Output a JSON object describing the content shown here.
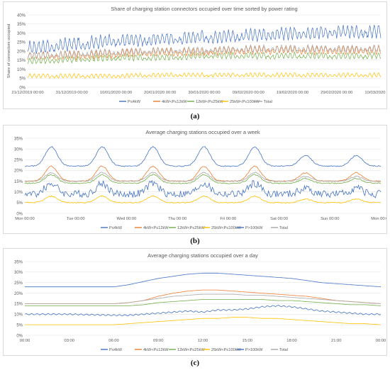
{
  "colors": {
    "P<=4kW": "#4472c4",
    "4kW<P<=12kW": "#ed7d31",
    "12kW<P<=25kW": "#70ad47",
    "25kW<P<=100kW": "#ffc000",
    "P>100kW": "#4472c4",
    "Total": "#a5a5a5"
  },
  "chart_data": [
    {
      "type": "line",
      "caption": "(a)",
      "title": "Share of charging station connectors occupied over time sorted by power rating",
      "ylabel": "Share of connectors occupied",
      "xlabel": "",
      "ylim": [
        0,
        40
      ],
      "yticks": [
        "0%",
        "5%",
        "10%",
        "15%",
        "20%",
        "25%",
        "30%",
        "35%",
        "40%"
      ],
      "xticks": [
        "21/12/2019 00:00",
        "31/12/2019 00:00",
        "10/01/2020 00:00",
        "20/01/2020 00:00",
        "30/01/2020 00:00",
        "09/02/2020 00:00",
        "19/02/2020 00:00",
        "29/02/2020 00:00",
        "10/03/2020 00:00"
      ],
      "x_start_day": 0,
      "x_end_day": 80,
      "grid": true,
      "legend": "bottom",
      "series": [
        {
          "name": "P≤4kW",
          "key": "P<=4kW",
          "base": [
            21,
            23,
            25,
            26,
            27,
            28,
            29,
            30,
            30
          ],
          "amp": 6
        },
        {
          "name": "4kW<P≤12kW",
          "key": "4kW<P<=12kW",
          "base": [
            17,
            17,
            18,
            19,
            19,
            20,
            20,
            20,
            20
          ],
          "amp": 4
        },
        {
          "name": "12kW<P≤25kW",
          "key": "12kW<P<=25kW",
          "base": [
            14,
            15,
            16,
            16,
            17,
            17,
            17,
            17,
            17
          ],
          "amp": 3
        },
        {
          "name": "25kW<P≤100kW",
          "key": "25kW<P<=100kW",
          "base": [
            6,
            6,
            6,
            6.5,
            6.5,
            6.5,
            6.5,
            6.5,
            6.5
          ],
          "amp": 2
        },
        {
          "name": "Total",
          "key": "Total",
          "base": [
            17,
            18,
            19,
            20,
            20,
            21,
            21,
            21,
            21
          ],
          "amp": 3
        }
      ]
    },
    {
      "type": "line",
      "caption": "(b)",
      "title": "Average charging stations occupied over a week",
      "ylabel": "",
      "xlabel": "",
      "ylim": [
        0,
        35
      ],
      "yticks": [
        "0%",
        "5%",
        "10%",
        "15%",
        "20%",
        "25%",
        "30%",
        "35%"
      ],
      "xticks": [
        "Mon 00:00",
        "Tue 00:00",
        "Wed 00:00",
        "Thu 00:00",
        "Fri 00:00",
        "Sat 00:00",
        "Sun 00:00",
        "Mon 00:00"
      ],
      "grid": true,
      "legend": "bottom",
      "series": [
        {
          "name": "P≤4kW",
          "key": "P<=4kW",
          "base": 22,
          "peak": 31
        },
        {
          "name": "4kW<P≤12kW",
          "key": "4kW<P<=12kW",
          "base": 15,
          "peak": 22
        },
        {
          "name": "12kW<P≤25kW",
          "key": "12kW<P<=25kW",
          "base": 14,
          "peak": 18
        },
        {
          "name": "25kW<P≤100kW",
          "key": "25kW<P<=100kW",
          "base": 5,
          "peak": 8
        },
        {
          "name": "P>100kW",
          "key": "P>100kW",
          "base": 9,
          "peak": 14
        },
        {
          "name": "Total",
          "key": "Total",
          "base": 15,
          "peak": 19
        }
      ]
    },
    {
      "type": "line",
      "caption": "(c)",
      "title": "Average charging stations occupied over a day",
      "ylabel": "",
      "xlabel": "",
      "ylim": [
        0,
        35
      ],
      "yticks": [
        "0%",
        "5%",
        "10%",
        "15%",
        "20%",
        "25%",
        "30%",
        "35%"
      ],
      "xticks": [
        "00:00",
        "03:00",
        "06:00",
        "09:00",
        "12:00",
        "15:00",
        "18:00",
        "21:00",
        "00:00"
      ],
      "grid": true,
      "legend": "bottom",
      "series": [
        {
          "name": "P≤4kW",
          "key": "P<=4kW",
          "hours": [
            0,
            3,
            6,
            7,
            8,
            9,
            10,
            11,
            12,
            13,
            14,
            15,
            16,
            17,
            18,
            19,
            20,
            21,
            22,
            23,
            24
          ],
          "values": [
            23,
            23,
            23,
            24,
            25.5,
            27,
            28,
            29,
            29.5,
            29.5,
            29,
            28.5,
            28,
            27.5,
            27,
            26,
            25,
            24.5,
            24,
            23.5,
            23
          ]
        },
        {
          "name": "4kW<P≤12kW",
          "key": "4kW<P<=12kW",
          "hours": [
            0,
            3,
            6,
            7,
            8,
            9,
            10,
            11,
            12,
            13,
            14,
            15,
            16,
            17,
            18,
            19,
            20,
            21,
            22,
            23,
            24
          ],
          "values": [
            15,
            15,
            15,
            15.5,
            16.5,
            18.5,
            20,
            21,
            21.5,
            21.5,
            21,
            20.5,
            20,
            19.5,
            19,
            18.5,
            17.5,
            16.5,
            16,
            15.5,
            15
          ]
        },
        {
          "name": "12kW<P≤25kW",
          "key": "12kW<P<=25kW",
          "hours": [
            0,
            3,
            6,
            7,
            8,
            9,
            10,
            11,
            12,
            13,
            14,
            15,
            16,
            17,
            18,
            19,
            20,
            21,
            22,
            23,
            24
          ],
          "values": [
            14,
            14,
            14,
            14,
            14.5,
            15.5,
            16,
            16.5,
            17,
            17,
            17,
            17,
            17,
            16.5,
            16.5,
            16,
            15.5,
            15,
            14.5,
            14.5,
            14
          ]
        },
        {
          "name": "25kW<P≤100kW",
          "key": "25kW<P<=100kW",
          "hours": [
            0,
            3,
            6,
            7,
            8,
            9,
            10,
            11,
            12,
            13,
            14,
            15,
            16,
            17,
            18,
            19,
            20,
            21,
            22,
            23,
            24
          ],
          "values": [
            5,
            5,
            5,
            5.5,
            6,
            6.5,
            7,
            7.5,
            8,
            8,
            8.5,
            8.5,
            8,
            8,
            7.5,
            7,
            6.5,
            6,
            5.5,
            5.5,
            5
          ]
        },
        {
          "name": "P>100kW",
          "key": "P>100kW",
          "hours": [
            0,
            3,
            6,
            7,
            8,
            9,
            10,
            11,
            12,
            13,
            14,
            15,
            16,
            17,
            18,
            19,
            20,
            21,
            22,
            23,
            24
          ],
          "values": [
            10,
            10,
            9.5,
            9.5,
            10,
            10.5,
            11,
            11.5,
            11,
            12,
            12,
            12.5,
            13.5,
            14,
            13.5,
            12.5,
            11.5,
            11,
            10.5,
            10,
            10
          ]
        },
        {
          "name": "Total",
          "key": "Total",
          "hours": [
            0,
            3,
            6,
            7,
            8,
            9,
            10,
            11,
            12,
            13,
            14,
            15,
            16,
            17,
            18,
            19,
            20,
            21,
            22,
            23,
            24
          ],
          "values": [
            15,
            15,
            15,
            15.5,
            16.5,
            17.5,
            18.5,
            19,
            19.5,
            19.5,
            19.5,
            19,
            19,
            18.5,
            18,
            17.5,
            17,
            16.5,
            16,
            15.5,
            15
          ]
        }
      ]
    }
  ]
}
